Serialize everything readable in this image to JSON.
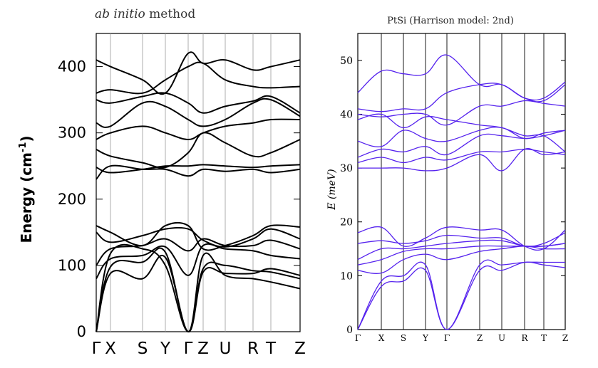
{
  "chart_data": [
    {
      "type": "line",
      "title_italic": "ab initio",
      "title_rest": " method",
      "ylabel": "Energy (cm",
      "ylabel_sup": "-1",
      "ylabel_close": ")",
      "ylim": [
        0,
        450
      ],
      "yticks": [
        0,
        100,
        200,
        300,
        400
      ],
      "k_points": [
        0,
        1,
        2,
        3,
        4,
        5,
        6,
        7,
        8,
        9
      ],
      "k_labels": [
        "Γ",
        "X",
        "S",
        "Y",
        "Γ",
        "Z",
        "U",
        "R",
        "T",
        "Z"
      ],
      "color": "#000000",
      "series": [
        {
          "values": [
            0,
            88,
            80,
            112,
            0,
            90,
            88,
            88,
            95,
            85
          ]
        },
        {
          "values": [
            0,
            98,
            105,
            120,
            0,
            115,
            85,
            80,
            75,
            65
          ]
        },
        {
          "values": [
            0,
            118,
            125,
            100,
            0,
            95,
            100,
            92,
            90,
            80
          ]
        },
        {
          "values": [
            80,
            110,
            115,
            128,
            85,
            130,
            125,
            122,
            115,
            110
          ]
        },
        {
          "values": [
            100,
            125,
            130,
            140,
            122,
            140,
            130,
            130,
            138,
            125
          ]
        },
        {
          "values": [
            150,
            135,
            145,
            155,
            155,
            138,
            128,
            140,
            155,
            140
          ]
        },
        {
          "values": [
            160,
            150,
            130,
            160,
            160,
            125,
            130,
            145,
            160,
            158
          ]
        },
        {
          "values": [
            230,
            250,
            245,
            245,
            235,
            245,
            242,
            245,
            240,
            245
          ]
        },
        {
          "values": [
            248,
            240,
            245,
            250,
            250,
            252,
            250,
            248,
            250,
            252
          ]
        },
        {
          "values": [
            275,
            265,
            255,
            248,
            270,
            300,
            285,
            265,
            270,
            290
          ]
        },
        {
          "values": [
            290,
            300,
            310,
            300,
            290,
            300,
            310,
            315,
            320,
            320
          ]
        },
        {
          "values": [
            315,
            310,
            345,
            340,
            320,
            310,
            320,
            345,
            350,
            325
          ]
        },
        {
          "values": [
            350,
            345,
            355,
            360,
            345,
            330,
            340,
            348,
            355,
            330
          ]
        },
        {
          "values": [
            360,
            365,
            360,
            380,
            400,
            405,
            380,
            370,
            368,
            370
          ]
        },
        {
          "values": [
            410,
            400,
            380,
            360,
            420,
            405,
            410,
            395,
            400,
            410
          ]
        }
      ]
    },
    {
      "type": "line",
      "title": "PtSi (Harrison model: 2nd)",
      "ylabel_italic": "E (meV)",
      "ylim": [
        0,
        55
      ],
      "yticks": [
        0,
        10,
        20,
        30,
        40,
        50
      ],
      "k_points": [
        0,
        1,
        2,
        3,
        4,
        5,
        6,
        7,
        8,
        9
      ],
      "k_labels": [
        "Γ",
        "X",
        "S",
        "Y",
        "Γ",
        "Z",
        "U",
        "R",
        "T",
        "Z"
      ],
      "color": "#5522ee",
      "series": [
        {
          "values": [
            0,
            8,
            9,
            11,
            0,
            11,
            11,
            12.5,
            12,
            11.5
          ]
        },
        {
          "values": [
            0,
            9,
            10,
            12,
            0,
            12,
            12,
            12.5,
            12.5,
            12.5
          ]
        },
        {
          "values": [
            11,
            10.5,
            13,
            14,
            13,
            14.5,
            15,
            15.5,
            15,
            15
          ]
        },
        {
          "values": [
            12,
            13,
            14.5,
            15,
            15,
            15.5,
            15.5,
            15.5,
            15.5,
            16
          ]
        },
        {
          "values": [
            13,
            15,
            15,
            15.5,
            16,
            16.5,
            16.5,
            15.5,
            15.5,
            16
          ]
        },
        {
          "values": [
            16,
            16.5,
            16,
            16.5,
            17.5,
            17,
            17,
            15.5,
            16,
            18
          ]
        },
        {
          "values": [
            18,
            19,
            15.5,
            17,
            19,
            18.5,
            18.5,
            15.5,
            15,
            18.5
          ]
        },
        {
          "values": [
            30,
            30,
            30,
            29.5,
            30,
            32.5,
            29.5,
            33.5,
            32.5,
            33
          ]
        },
        {
          "values": [
            31,
            32,
            31,
            32,
            31.5,
            33,
            33,
            33.5,
            33,
            32.5
          ]
        },
        {
          "values": [
            32,
            33.5,
            33,
            34,
            32.5,
            36,
            36,
            35.5,
            36,
            37
          ]
        },
        {
          "values": [
            35,
            34,
            37,
            35.5,
            35,
            37,
            37.5,
            35.5,
            36.5,
            37
          ]
        },
        {
          "values": [
            39,
            40,
            37.5,
            39.5,
            39,
            38,
            37.5,
            36,
            36,
            33
          ]
        },
        {
          "values": [
            40,
            39.5,
            40,
            40,
            38,
            41.5,
            41.5,
            42.5,
            42,
            41.5
          ]
        },
        {
          "values": [
            41,
            40.5,
            41,
            41,
            44,
            45.5,
            45.5,
            43,
            42.5,
            45.5
          ]
        },
        {
          "values": [
            44,
            48,
            47.5,
            47.5,
            51,
            45.5,
            45.5,
            43,
            43,
            46
          ]
        }
      ]
    }
  ]
}
